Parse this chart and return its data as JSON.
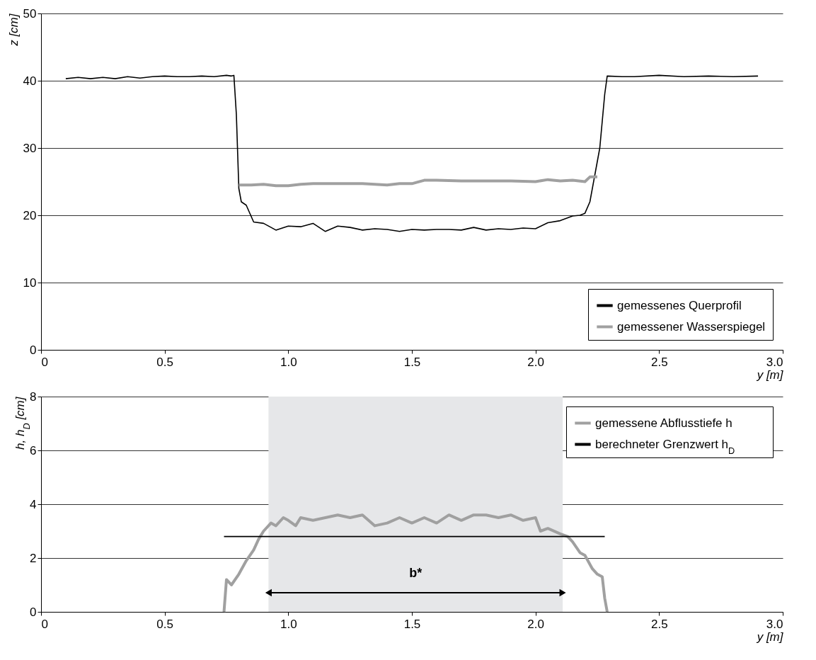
{
  "chart_data": [
    {
      "type": "line",
      "ylabel": "z [cm]",
      "xlabel": "y [m]",
      "xlim": [
        0,
        3
      ],
      "xticks": [
        0,
        0.5,
        {
          "value": 1,
          "label": "1.0"
        },
        1.5,
        {
          "value": 2,
          "label": "2.0"
        },
        2.5,
        {
          "value": 3,
          "label": "3.0"
        }
      ],
      "ylim": [
        0,
        50
      ],
      "yticks": [
        0,
        10,
        20,
        30,
        40,
        50
      ],
      "grid": "y",
      "legend": "bottom right",
      "series": [
        {
          "name": "gemessenes Querprofil",
          "color": "#000000",
          "x": [
            0.1,
            0.15,
            0.2,
            0.25,
            0.3,
            0.35,
            0.4,
            0.45,
            0.5,
            0.55,
            0.6,
            0.65,
            0.7,
            0.75,
            0.77,
            0.78,
            0.79,
            0.8,
            0.81,
            0.83,
            0.86,
            0.9,
            0.95,
            1.0,
            1.05,
            1.1,
            1.15,
            1.2,
            1.25,
            1.3,
            1.35,
            1.4,
            1.45,
            1.5,
            1.55,
            1.6,
            1.65,
            1.7,
            1.75,
            1.8,
            1.85,
            1.9,
            1.95,
            2.0,
            2.05,
            2.1,
            2.15,
            2.18,
            2.2,
            2.22,
            2.24,
            2.26,
            2.27,
            2.28,
            2.29,
            2.35,
            2.4,
            2.5,
            2.6,
            2.7,
            2.8,
            2.9
          ],
          "values": [
            40.3,
            40.5,
            40.3,
            40.5,
            40.3,
            40.6,
            40.4,
            40.6,
            40.7,
            40.6,
            40.6,
            40.7,
            40.6,
            40.8,
            40.7,
            40.8,
            35,
            24,
            22,
            21.5,
            19,
            18.8,
            17.8,
            18.4,
            18.3,
            18.8,
            17.6,
            18.4,
            18.2,
            17.8,
            18.0,
            17.9,
            17.6,
            17.9,
            17.8,
            17.9,
            17.9,
            17.8,
            18.2,
            17.8,
            18.0,
            17.9,
            18.1,
            18.0,
            18.9,
            19.2,
            19.9,
            20.0,
            20.3,
            22,
            26,
            30,
            34,
            38,
            40.7,
            40.6,
            40.6,
            40.8,
            40.6,
            40.7,
            40.6,
            40.7
          ]
        },
        {
          "name": "gemessener Wasserspiegel",
          "color": "#a0a0a0",
          "x": [
            0.8,
            0.85,
            0.9,
            0.95,
            1.0,
            1.05,
            1.1,
            1.2,
            1.3,
            1.4,
            1.45,
            1.5,
            1.55,
            1.6,
            1.7,
            1.8,
            1.9,
            2.0,
            2.05,
            2.1,
            2.15,
            2.2,
            2.22,
            2.25
          ],
          "values": [
            24.5,
            24.5,
            24.6,
            24.4,
            24.4,
            24.6,
            24.7,
            24.7,
            24.7,
            24.5,
            24.7,
            24.7,
            25.2,
            25.2,
            25.1,
            25.1,
            25.1,
            25.0,
            25.3,
            25.1,
            25.2,
            25.0,
            25.7,
            25.7
          ]
        }
      ]
    },
    {
      "type": "line",
      "ylabel": "h, h$_{D}$ [cm]",
      "xlabel": "y [m]",
      "xlim": [
        0,
        3
      ],
      "xticks": [
        0,
        0.5,
        {
          "value": 1,
          "label": "1.0"
        },
        1.5,
        {
          "value": 2,
          "label": "2.0"
        },
        2.5,
        {
          "value": 3,
          "label": "3.0"
        }
      ],
      "ylim": [
        0,
        8
      ],
      "yticks": [
        0,
        2,
        4,
        6,
        8
      ],
      "grid": "y",
      "legend": "top right",
      "bands": [
        {
          "axis": "x",
          "from": 0.92,
          "to": 2.11,
          "color": "#e6e7e9"
        }
      ],
      "annotations": [
        "b*"
      ],
      "series": [
        {
          "name": "gemessene Abflusstiefe h",
          "color": "#a0a0a0",
          "x": [
            0.74,
            0.75,
            0.76,
            0.77,
            0.8,
            0.83,
            0.86,
            0.88,
            0.9,
            0.93,
            0.95,
            0.98,
            1.0,
            1.03,
            1.05,
            1.1,
            1.15,
            1.2,
            1.25,
            1.3,
            1.35,
            1.4,
            1.45,
            1.5,
            1.55,
            1.6,
            1.65,
            1.7,
            1.75,
            1.8,
            1.85,
            1.9,
            1.95,
            2.0,
            2.02,
            2.05,
            2.1,
            2.13,
            2.15,
            2.18,
            2.2,
            2.23,
            2.25,
            2.27,
            2.28,
            2.29
          ],
          "values": [
            0,
            1.2,
            1.1,
            1.0,
            1.4,
            1.9,
            2.3,
            2.7,
            3.0,
            3.3,
            3.2,
            3.5,
            3.4,
            3.2,
            3.5,
            3.4,
            3.5,
            3.6,
            3.5,
            3.6,
            3.2,
            3.3,
            3.5,
            3.3,
            3.5,
            3.3,
            3.6,
            3.4,
            3.6,
            3.6,
            3.5,
            3.6,
            3.4,
            3.5,
            3.0,
            3.1,
            2.9,
            2.8,
            2.6,
            2.2,
            2.1,
            1.6,
            1.4,
            1.3,
            0.5,
            0
          ]
        },
        {
          "name": "berechneter Grenzwert h$_{D}$",
          "color": "#000000",
          "x": [
            0.74,
            2.28
          ],
          "values": [
            2.8,
            2.8
          ]
        }
      ]
    }
  ]
}
